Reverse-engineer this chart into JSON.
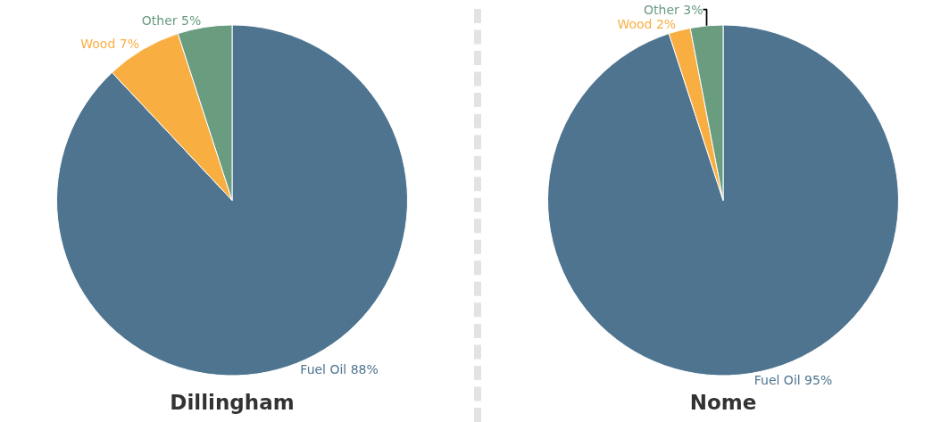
{
  "chart_data": [
    {
      "type": "pie",
      "title": "Dillingham",
      "categories": [
        "Fuel Oil",
        "Wood",
        "Other"
      ],
      "values": [
        88,
        7,
        5
      ],
      "colors": [
        "#4e7490",
        "#f9ae42",
        "#6a9c80"
      ],
      "value_labels": [
        "88%",
        "7%",
        "5%"
      ],
      "legend": false
    },
    {
      "type": "pie",
      "title": "Nome",
      "categories": [
        "Fuel Oil",
        "Wood",
        "Other"
      ],
      "values": [
        95,
        2,
        3
      ],
      "colors": [
        "#4e7490",
        "#f9ae42",
        "#6a9c80"
      ],
      "value_labels": [
        "95%",
        "2%",
        "3%"
      ],
      "legend": false
    }
  ]
}
